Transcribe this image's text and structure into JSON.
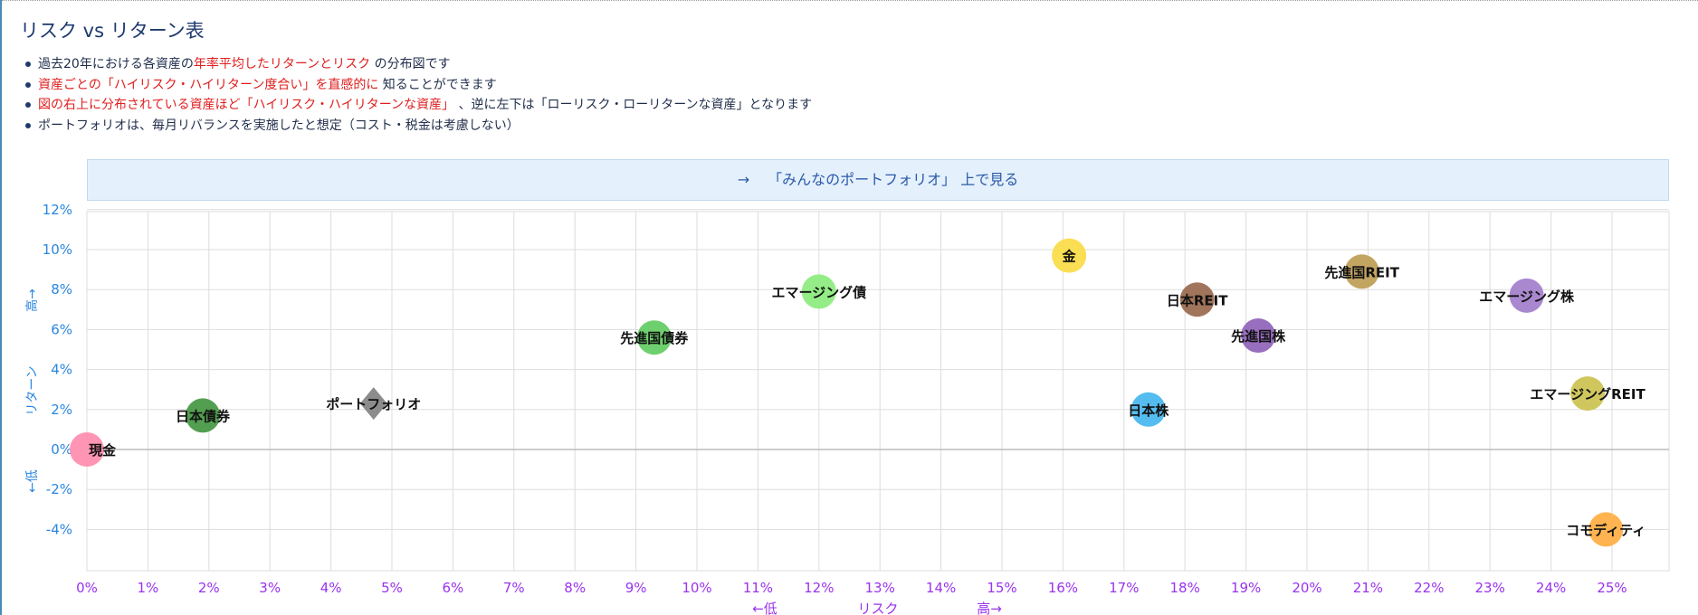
{
  "page": {
    "title": "リスク vs リターン表",
    "notes": [
      {
        "before": "過去20年における各資産の",
        "em": "年率平均したリターンとリスク",
        "after": " の分布図です"
      },
      {
        "before": "",
        "em": "資産ごとの「ハイリスク・ハイリターン度合い」を直感的に",
        "after": " 知ることができます"
      },
      {
        "before": "",
        "em": "図の右上に分布されている資産ほど「ハイリスク・ハイリターンな資産」",
        "after": " 、逆に左下は「ローリスク・ローリターンな資産」となります"
      },
      {
        "before": "ポートフォリオは、毎月リバランスを実施したと想定（コスト・税金は考慮しない）",
        "em": "",
        "after": ""
      }
    ],
    "link": {
      "arrow": "→",
      "label": "「みんなのポートフォリオ」 上で見る"
    }
  },
  "chart_data": {
    "type": "scatter",
    "xlim": [
      0,
      26
    ],
    "ylim": [
      -6,
      12
    ],
    "x_ticks": [
      0,
      1,
      2,
      3,
      4,
      5,
      6,
      7,
      8,
      9,
      10,
      11,
      12,
      13,
      14,
      15,
      16,
      17,
      18,
      19,
      20,
      21,
      22,
      23,
      24,
      25
    ],
    "y_ticks": [
      -4,
      -2,
      0,
      2,
      4,
      6,
      8,
      10,
      12
    ],
    "tick_suffix": "%",
    "grid": true,
    "xlabel": {
      "low": "←低",
      "text": "リスク",
      "high": "高→"
    },
    "ylabel": {
      "low": "←低",
      "text": "リターン",
      "high": "高→"
    },
    "colors": {
      "y_axis_text": "#2b86e0",
      "x_axis_text": "#9933ee",
      "grid": "#dddddd",
      "zero_line": "#bbbbbb"
    },
    "points": [
      {
        "name": "現金",
        "x": 0.0,
        "y": 0.0,
        "color": "#ff8fb1",
        "shape": "circle"
      },
      {
        "name": "日本債券",
        "x": 1.9,
        "y": 1.7,
        "color": "#4a9a48",
        "shape": "circle"
      },
      {
        "name": "ポートフォリオ",
        "x": 4.7,
        "y": 2.3,
        "color": "#8c8c8c",
        "shape": "diamond"
      },
      {
        "name": "先進国債券",
        "x": 9.3,
        "y": 5.6,
        "color": "#66cc66",
        "shape": "circle"
      },
      {
        "name": "エマージング債",
        "x": 12.0,
        "y": 7.9,
        "color": "#8eec80",
        "shape": "circle"
      },
      {
        "name": "金",
        "x": 16.1,
        "y": 9.7,
        "color": "#fadc4a",
        "shape": "circle"
      },
      {
        "name": "日本株",
        "x": 17.4,
        "y": 2.0,
        "color": "#4cb8ee",
        "shape": "circle"
      },
      {
        "name": "日本REIT",
        "x": 18.2,
        "y": 7.5,
        "color": "#9c6e52",
        "shape": "circle"
      },
      {
        "name": "先進国株",
        "x": 19.2,
        "y": 5.7,
        "color": "#9266bc",
        "shape": "circle"
      },
      {
        "name": "先進国REIT",
        "x": 20.9,
        "y": 8.9,
        "color": "#c0a05a",
        "shape": "circle"
      },
      {
        "name": "エマージング株",
        "x": 23.6,
        "y": 7.7,
        "color": "#a482cc",
        "shape": "circle"
      },
      {
        "name": "エマージングREIT",
        "x": 24.6,
        "y": 2.8,
        "color": "#ccc455",
        "shape": "circle"
      },
      {
        "name": "コモディティ",
        "x": 24.9,
        "y": -4.0,
        "color": "#ffb048",
        "shape": "circle"
      }
    ]
  }
}
